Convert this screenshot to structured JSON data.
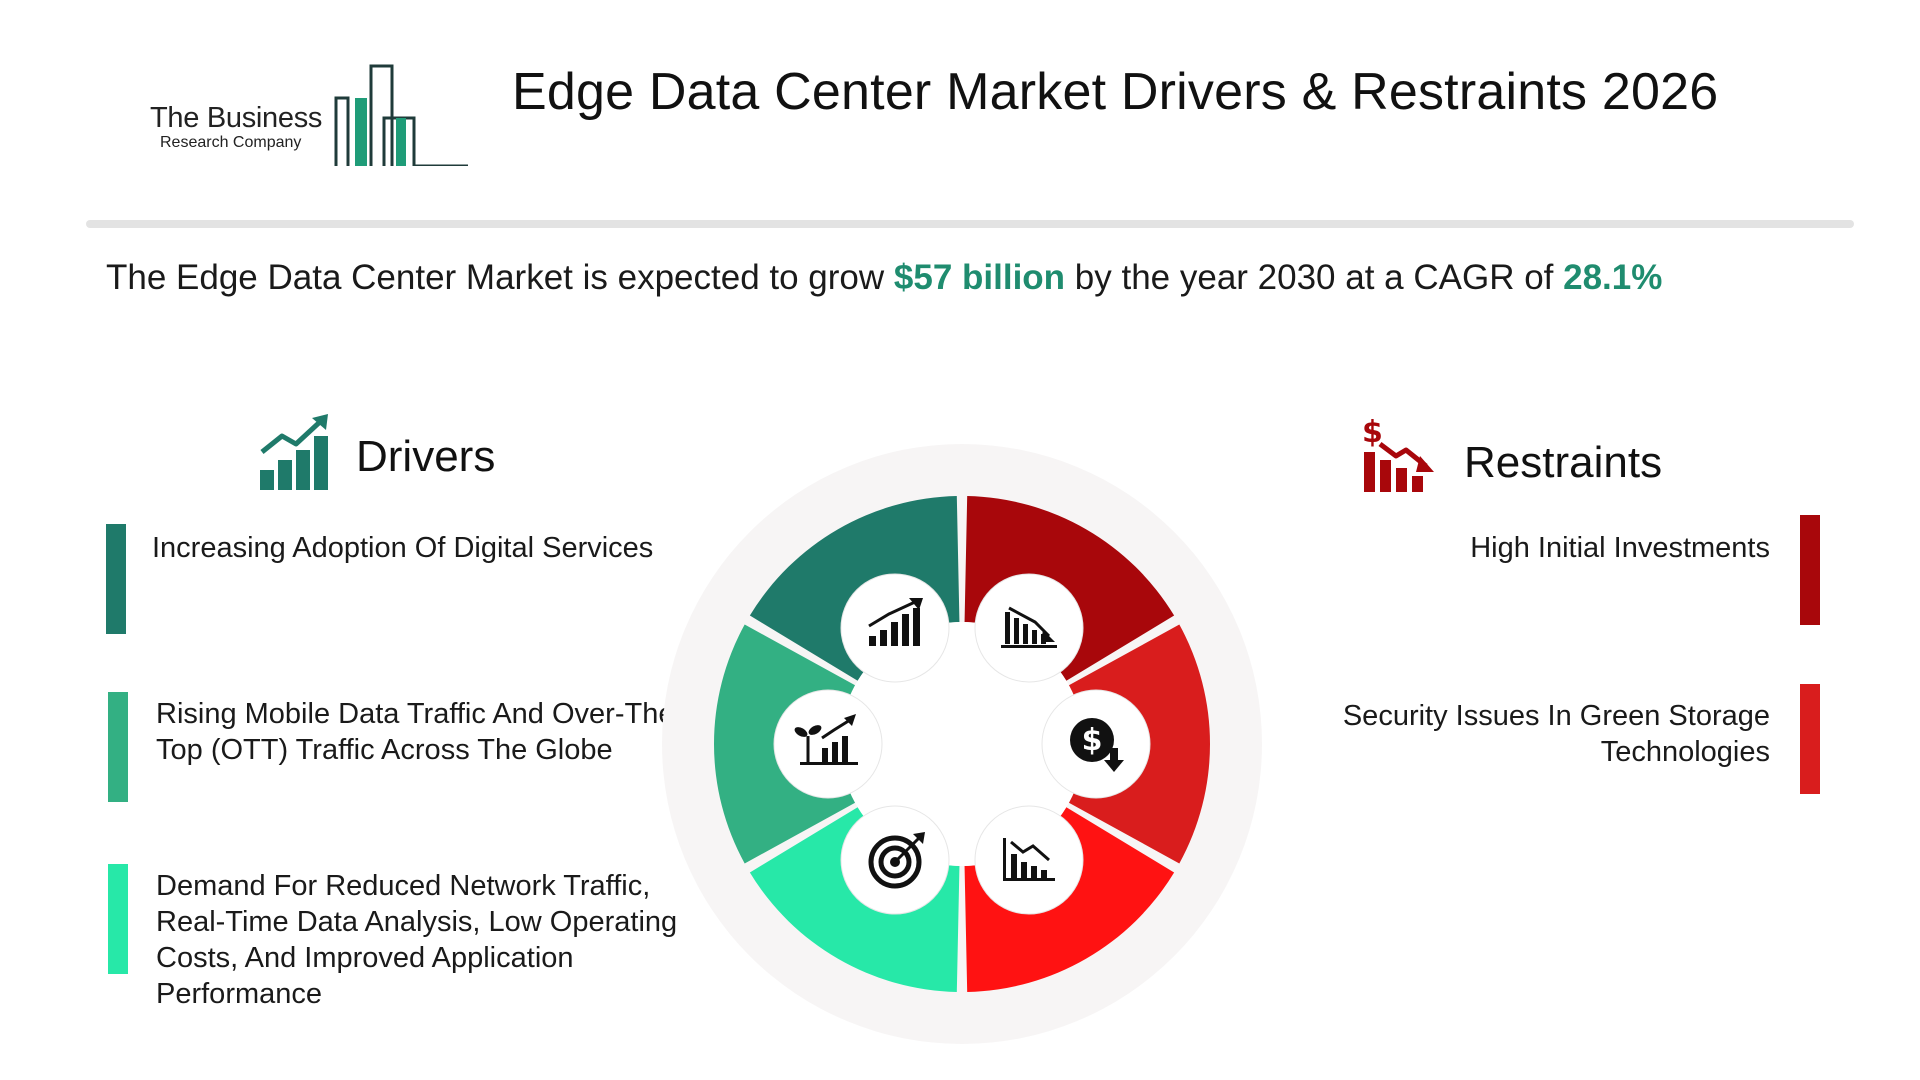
{
  "header": {
    "logo_line1": "The Business",
    "logo_line2": "Research Company",
    "title": "Edge Data Center Market Drivers & Restraints 2026"
  },
  "summary": {
    "prefix": "The Edge Data Center Market is expected to grow ",
    "value": "$57 billion",
    "middle": " by the year 2030 at a CAGR of ",
    "cagr": "28.1%"
  },
  "drivers": {
    "title": "Drivers",
    "icon": "growth-chart-icon",
    "items": [
      {
        "text": "Increasing Adoption Of Digital Services",
        "color": "#1f7a6a"
      },
      {
        "text": "Rising Mobile Data Traffic And Over-The-Top (OTT) Traffic Across The Globe",
        "color": "#33b083"
      },
      {
        "text": "Demand For Reduced Network Traffic, Real-Time Data Analysis, Low Operating Costs, And Improved Application Performance",
        "color": "#27e8a8"
      }
    ]
  },
  "restraints": {
    "title": "Restraints",
    "icon": "declining-dollar-chart-icon",
    "items": [
      {
        "text": "High Initial Investments",
        "color": "#a8070b"
      },
      {
        "text": "Security Issues In Green Storage Technologies",
        "color": "#d91d1d"
      }
    ]
  },
  "wheel": {
    "segment_colors": [
      "#a8070b",
      "#d91d1d",
      "#ff1212",
      "#27e8a8",
      "#33b083",
      "#1f7a6a"
    ],
    "icons": [
      "declining-bar-chart-icon",
      "dollar-down-icon",
      "declining-line-chart-icon",
      "target-icon",
      "plant-growth-chart-icon",
      "rising-bar-chart-icon"
    ]
  }
}
